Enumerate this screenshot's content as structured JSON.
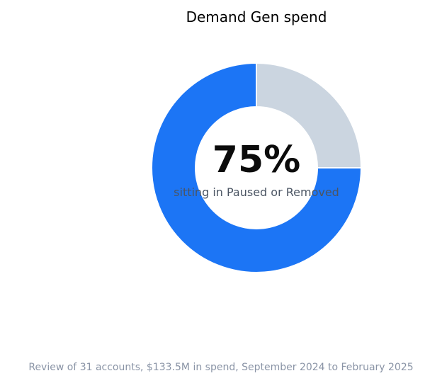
{
  "chart_data": {
    "type": "pie",
    "title": "Demand Gen spend",
    "center_value": "75%",
    "center_label": "sitting in Paused or Removed",
    "footnote": "Review of 31 accounts, $133.5M in spend, September 2024 to February 2025",
    "slices": [
      {
        "value": 25,
        "color": "#cbd5e0"
      },
      {
        "value": 75,
        "color": "#1c75f5"
      }
    ],
    "start_angle_deg": 0,
    "direction": "clockwise",
    "donut": true,
    "legend": "none"
  }
}
